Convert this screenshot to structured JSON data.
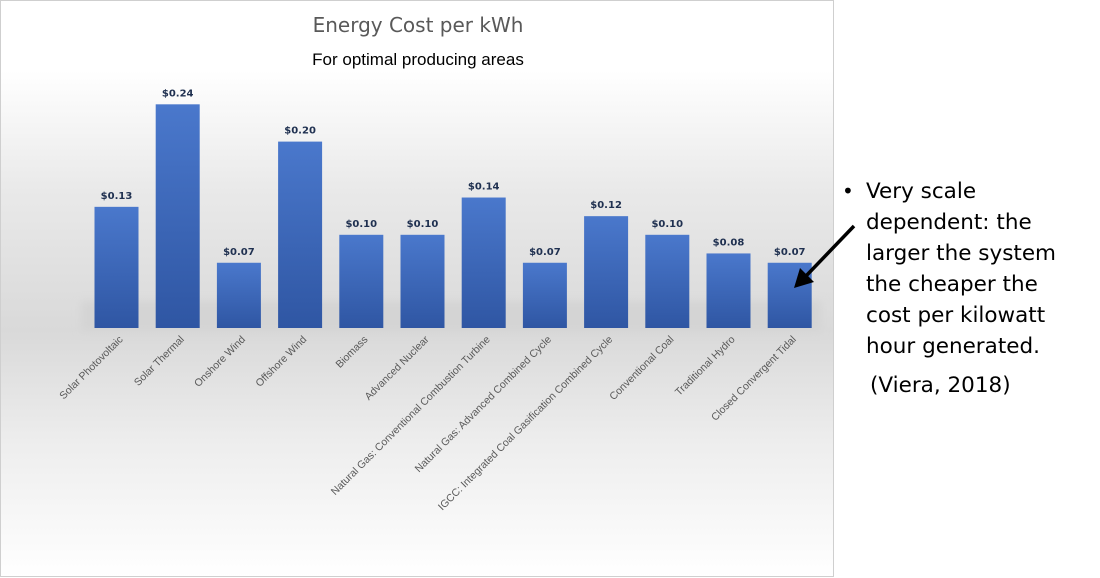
{
  "chart_data": {
    "type": "bar",
    "title": "Energy Cost per kWh",
    "subtitle": "For optimal producing areas",
    "categories": [
      "Solar Photovoltaic",
      "Solar Thermal",
      "Onshore Wind",
      "Offshore Wind",
      "Biomass",
      "Advanced Nuclear",
      "Natural Gas: Conventional Combustion Turbine",
      "Natural Gas: Advanced Combined Cycle",
      "IGCC: Integrated Coal Gasification Combined Cycle",
      "Conventional Coal",
      "Traditional Hydro",
      "Closed Convergent Tidal"
    ],
    "values": [
      0.13,
      0.24,
      0.07,
      0.2,
      0.1,
      0.1,
      0.14,
      0.07,
      0.12,
      0.1,
      0.08,
      0.07
    ],
    "data_labels": [
      "$0.13",
      "$0.24",
      "$0.07",
      "$0.20",
      "$0.10",
      "$0.10",
      "$0.14",
      "$0.07",
      "$0.12",
      "$0.10",
      "$0.08",
      "$0.07"
    ],
    "xlabel": "",
    "ylabel": "",
    "ylim": [
      0,
      0.25
    ],
    "grid": false,
    "bar_color": "#4472c4"
  },
  "annotation": {
    "bullet_symbol": "•",
    "lines": [
      "Very scale",
      "dependent:  the",
      "larger the system",
      "the cheaper the",
      "cost per kilowatt",
      "hour generated."
    ],
    "citation": "(Viera, 2018)"
  }
}
